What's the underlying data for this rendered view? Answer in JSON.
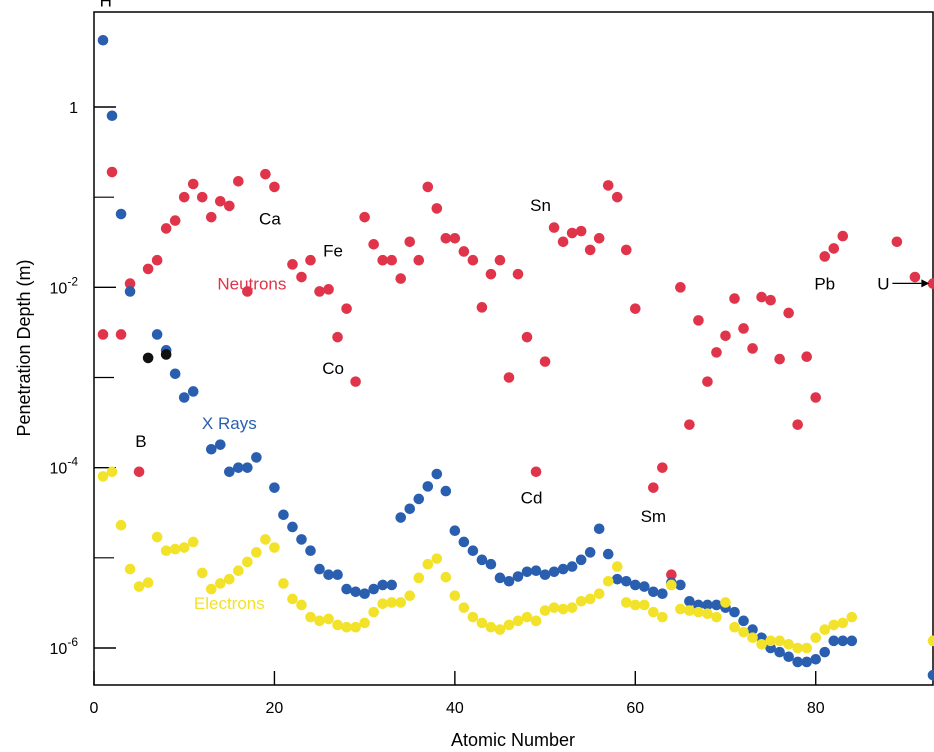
{
  "chart_data": {
    "type": "scatter",
    "xlabel": "Atomic Number",
    "ylabel": "Penetration Depth (m)",
    "y_scale": "log",
    "xlim": [
      0,
      93
    ],
    "ylim": [
      3e-07,
      20
    ],
    "x_ticks": [
      {
        "value": 0,
        "label": "0"
      },
      {
        "value": 20,
        "label": "20"
      },
      {
        "value": 40,
        "label": "40"
      },
      {
        "value": 60,
        "label": "60"
      },
      {
        "value": 80,
        "label": "80"
      }
    ],
    "y_ticks": [
      {
        "value": 1,
        "label": "1",
        "sup": ""
      },
      {
        "value": 0.01,
        "label": "10",
        "sup": "-2"
      },
      {
        "value": 0.0001,
        "label": "10",
        "sup": "-4"
      },
      {
        "value": 1e-06,
        "label": "10",
        "sup": "-6"
      }
    ],
    "y_minor_ticks": [
      0.1,
      0.001,
      1e-05
    ],
    "grid": false,
    "colors": {
      "Neutrons": "#e0344a",
      "X Rays": "#2a5fb0",
      "Electrons": "#f2e22a",
      "gas_points": "#111111"
    },
    "series": [
      {
        "name": "Neutrons",
        "points": [
          [
            1,
            0.003
          ],
          [
            2,
            0.19
          ],
          [
            3,
            0.003
          ],
          [
            4,
            0.011
          ],
          [
            5,
            9e-05
          ],
          [
            6,
            0.016
          ],
          [
            7,
            0.02
          ],
          [
            8,
            0.045
          ],
          [
            9,
            0.055
          ],
          [
            10,
            0.1
          ],
          [
            11,
            0.14
          ],
          [
            12,
            0.1
          ],
          [
            13,
            0.06
          ],
          [
            14,
            0.09
          ],
          [
            15,
            0.08
          ],
          [
            16,
            0.15
          ],
          [
            17,
            0.009
          ],
          [
            19,
            0.18
          ],
          [
            20,
            0.13
          ],
          [
            22,
            0.018
          ],
          [
            23,
            0.013
          ],
          [
            24,
            0.02
          ],
          [
            25,
            0.009
          ],
          [
            26,
            0.0095
          ],
          [
            27,
            0.0028
          ],
          [
            28,
            0.0058
          ],
          [
            29,
            0.0009
          ],
          [
            30,
            0.06
          ],
          [
            31,
            0.03
          ],
          [
            32,
            0.02
          ],
          [
            33,
            0.02
          ],
          [
            34,
            0.0125
          ],
          [
            35,
            0.032
          ],
          [
            36,
            0.02
          ],
          [
            37,
            0.13
          ],
          [
            38,
            0.075
          ],
          [
            39,
            0.035
          ],
          [
            40,
            0.035
          ],
          [
            41,
            0.025
          ],
          [
            42,
            0.02
          ],
          [
            43,
            0.006
          ],
          [
            44,
            0.014
          ],
          [
            45,
            0.02
          ],
          [
            46,
            0.001
          ],
          [
            47,
            0.014
          ],
          [
            48,
            0.0028
          ],
          [
            49,
            9e-05
          ],
          [
            50,
            0.0015
          ],
          [
            51,
            0.046
          ],
          [
            52,
            0.032
          ],
          [
            53,
            0.04
          ],
          [
            54,
            0.042
          ],
          [
            55,
            0.026
          ],
          [
            56,
            0.035
          ],
          [
            57,
            0.135
          ],
          [
            58,
            0.1
          ],
          [
            59,
            0.026
          ],
          [
            60,
            0.0058
          ],
          [
            62,
            6e-05
          ],
          [
            63,
            0.0001
          ],
          [
            64,
            6.5e-06
          ],
          [
            65,
            0.01
          ],
          [
            66,
            0.0003
          ],
          [
            67,
            0.0043
          ],
          [
            68,
            0.0009
          ],
          [
            69,
            0.0019
          ],
          [
            70,
            0.0029
          ],
          [
            71,
            0.0075
          ],
          [
            72,
            0.0035
          ],
          [
            73,
            0.0021
          ],
          [
            74,
            0.0078
          ],
          [
            75,
            0.0072
          ],
          [
            76,
            0.0016
          ],
          [
            77,
            0.0052
          ],
          [
            78,
            0.0003
          ],
          [
            79,
            0.0017
          ],
          [
            80,
            0.0006
          ],
          [
            81,
            0.022
          ],
          [
            82,
            0.027
          ],
          [
            83,
            0.037
          ],
          [
            89,
            0.032
          ],
          [
            91,
            0.013
          ],
          [
            93,
            0.011
          ]
        ]
      },
      {
        "name": "X Rays",
        "points": [
          [
            1,
            5.5
          ],
          [
            2,
            0.8
          ],
          [
            3,
            0.065
          ],
          [
            4,
            0.009
          ],
          [
            7,
            0.003
          ],
          [
            8,
            0.002
          ],
          [
            9,
            0.0011
          ],
          [
            10,
            0.0006
          ],
          [
            11,
            0.0007
          ],
          [
            13,
            0.00016
          ],
          [
            14,
            0.00018
          ],
          [
            15,
            9e-05
          ],
          [
            16,
            0.0001
          ],
          [
            17,
            0.0001
          ],
          [
            18,
            0.00013
          ],
          [
            20,
            6e-05
          ],
          [
            21,
            3e-05
          ],
          [
            22,
            2.2e-05
          ],
          [
            23,
            1.6e-05
          ],
          [
            24,
            1.2e-05
          ],
          [
            25,
            7.5e-06
          ],
          [
            26,
            6.5e-06
          ],
          [
            27,
            6.5e-06
          ],
          [
            28,
            4.5e-06
          ],
          [
            29,
            4.2e-06
          ],
          [
            30,
            4e-06
          ],
          [
            31,
            4.5e-06
          ],
          [
            32,
            5e-06
          ],
          [
            33,
            5e-06
          ],
          [
            34,
            2.8e-05
          ],
          [
            35,
            3.5e-05
          ],
          [
            36,
            4.5e-05
          ],
          [
            37,
            6.2e-05
          ],
          [
            38,
            8.5e-05
          ],
          [
            39,
            5.5e-05
          ],
          [
            40,
            2e-05
          ],
          [
            41,
            1.5e-05
          ],
          [
            42,
            1.2e-05
          ],
          [
            43,
            9.5e-06
          ],
          [
            44,
            8.5e-06
          ],
          [
            45,
            6e-06
          ],
          [
            46,
            5.5e-06
          ],
          [
            47,
            6.2e-06
          ],
          [
            48,
            7e-06
          ],
          [
            49,
            7.2e-06
          ],
          [
            50,
            6.5e-06
          ],
          [
            51,
            7e-06
          ],
          [
            52,
            7.5e-06
          ],
          [
            53,
            8e-06
          ],
          [
            54,
            9.5e-06
          ],
          [
            55,
            1.15e-05
          ],
          [
            56,
            2.1e-05
          ],
          [
            57,
            1.1e-05
          ],
          [
            58,
            5.8e-06
          ],
          [
            59,
            5.5e-06
          ],
          [
            60,
            5e-06
          ],
          [
            61,
            4.8e-06
          ],
          [
            62,
            4.2e-06
          ],
          [
            63,
            4e-06
          ],
          [
            64,
            5.3e-06
          ],
          [
            65,
            5e-06
          ],
          [
            66,
            3.3e-06
          ],
          [
            67,
            3e-06
          ],
          [
            68,
            3e-06
          ],
          [
            69,
            3e-06
          ],
          [
            70,
            2.8e-06
          ],
          [
            71,
            2.5e-06
          ],
          [
            72,
            2e-06
          ],
          [
            73,
            1.6e-06
          ],
          [
            74,
            1.3e-06
          ],
          [
            75,
            1e-06
          ],
          [
            76,
            9e-07
          ],
          [
            77,
            8e-07
          ],
          [
            78,
            7e-07
          ],
          [
            79,
            7e-07
          ],
          [
            80,
            7.5e-07
          ],
          [
            81,
            9e-07
          ],
          [
            82,
            1.2e-06
          ],
          [
            83,
            1.2e-06
          ],
          [
            84,
            1.2e-06
          ],
          [
            93,
            5e-07
          ]
        ]
      },
      {
        "name": "Electrons",
        "points": [
          [
            1,
            8e-05
          ],
          [
            2,
            9e-05
          ],
          [
            3,
            2.3e-05
          ],
          [
            4,
            7.5e-06
          ],
          [
            5,
            4.8e-06
          ],
          [
            6,
            5.3e-06
          ],
          [
            7,
            1.7e-05
          ],
          [
            8,
            1.2e-05
          ],
          [
            9,
            1.25e-05
          ],
          [
            10,
            1.3e-05
          ],
          [
            11,
            1.5e-05
          ],
          [
            12,
            6.8e-06
          ],
          [
            13,
            4.5e-06
          ],
          [
            14,
            5.2e-06
          ],
          [
            15,
            5.8e-06
          ],
          [
            16,
            7.2e-06
          ],
          [
            17,
            9e-06
          ],
          [
            18,
            1.15e-05
          ],
          [
            19,
            1.6e-05
          ],
          [
            20,
            1.3e-05
          ],
          [
            21,
            5.2e-06
          ],
          [
            22,
            3.5e-06
          ],
          [
            23,
            3e-06
          ],
          [
            24,
            2.2e-06
          ],
          [
            25,
            2e-06
          ],
          [
            26,
            2.1e-06
          ],
          [
            27,
            1.8e-06
          ],
          [
            28,
            1.7e-06
          ],
          [
            29,
            1.7e-06
          ],
          [
            30,
            1.9e-06
          ],
          [
            31,
            2.5e-06
          ],
          [
            32,
            3.1e-06
          ],
          [
            33,
            3.2e-06
          ],
          [
            34,
            3.2e-06
          ],
          [
            35,
            3.8e-06
          ],
          [
            36,
            6e-06
          ],
          [
            37,
            8.5e-06
          ],
          [
            38,
            9.8e-06
          ],
          [
            39,
            6.1e-06
          ],
          [
            40,
            3.8e-06
          ],
          [
            41,
            2.8e-06
          ],
          [
            42,
            2.2e-06
          ],
          [
            43,
            1.9e-06
          ],
          [
            44,
            1.7e-06
          ],
          [
            45,
            1.6e-06
          ],
          [
            46,
            1.8e-06
          ],
          [
            47,
            2e-06
          ],
          [
            48,
            2.2e-06
          ],
          [
            49,
            2e-06
          ],
          [
            50,
            2.6e-06
          ],
          [
            51,
            2.8e-06
          ],
          [
            52,
            2.7e-06
          ],
          [
            53,
            2.8e-06
          ],
          [
            54,
            3.3e-06
          ],
          [
            55,
            3.5e-06
          ],
          [
            56,
            4e-06
          ],
          [
            57,
            5.5e-06
          ],
          [
            58,
            8e-06
          ],
          [
            59,
            3.2e-06
          ],
          [
            60,
            3e-06
          ],
          [
            61,
            3e-06
          ],
          [
            62,
            2.5e-06
          ],
          [
            63,
            2.2e-06
          ],
          [
            64,
            5e-06
          ],
          [
            65,
            2.7e-06
          ],
          [
            66,
            2.6e-06
          ],
          [
            67,
            2.5e-06
          ],
          [
            68,
            2.4e-06
          ],
          [
            69,
            2.2e-06
          ],
          [
            70,
            3.2e-06
          ],
          [
            71,
            1.7e-06
          ],
          [
            72,
            1.5e-06
          ],
          [
            73,
            1.3e-06
          ],
          [
            74,
            1.1e-06
          ],
          [
            75,
            1.2e-06
          ],
          [
            76,
            1.2e-06
          ],
          [
            77,
            1.1e-06
          ],
          [
            78,
            1e-06
          ],
          [
            79,
            1e-06
          ],
          [
            80,
            1.3e-06
          ],
          [
            81,
            1.6e-06
          ],
          [
            82,
            1.8e-06
          ],
          [
            83,
            1.9e-06
          ],
          [
            84,
            2.2e-06
          ],
          [
            93,
            1.2e-06
          ]
        ]
      },
      {
        "name": "",
        "points": [
          [
            6,
            0.00165
          ],
          [
            8,
            0.0018
          ]
        ]
      }
    ],
    "series_labels": [
      {
        "text": "Neutrons",
        "x": 17.5,
        "y": 0.0095
      },
      {
        "text": "X Rays",
        "x": 15,
        "y": 0.00027
      },
      {
        "text": "Electrons",
        "x": 15,
        "y": 2.7e-06
      }
    ],
    "annotations": [
      {
        "text": "H",
        "x": 1.3,
        "y": 13
      },
      {
        "text": "B",
        "x": 5.2,
        "y": 0.00017
      },
      {
        "text": "Ca",
        "x": 19.5,
        "y": 0.05
      },
      {
        "text": "Fe",
        "x": 26.5,
        "y": 0.022
      },
      {
        "text": "Co",
        "x": 26.5,
        "y": 0.0011
      },
      {
        "text": "Sn",
        "x": 49.5,
        "y": 0.07
      },
      {
        "text": "Cd",
        "x": 48.5,
        "y": 4e-05
      },
      {
        "text": "Sm",
        "x": 62,
        "y": 2.5e-05
      },
      {
        "text": "Pb",
        "x": 81,
        "y": 0.0095
      },
      {
        "text": "U",
        "x": 87.5,
        "y": 0.0095,
        "arrow": true
      }
    ]
  }
}
